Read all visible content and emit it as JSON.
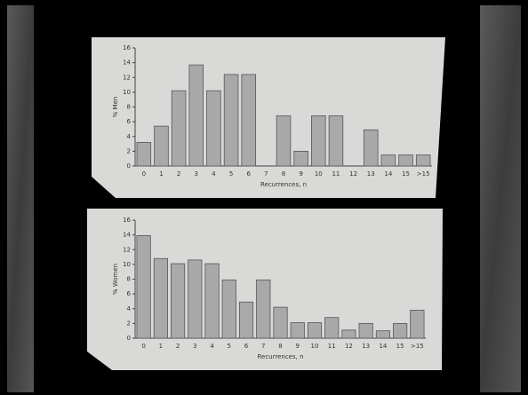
{
  "chart_data": [
    {
      "type": "bar",
      "x_label": "Recurrences, n",
      "y_label": "% Men",
      "categories": [
        "0",
        "1",
        "2",
        "3",
        "4",
        "5",
        "6",
        "7",
        "8",
        "9",
        "10",
        "11",
        "12",
        "13",
        "14",
        "15",
        ">15"
      ],
      "values": [
        3.2,
        5.4,
        10.2,
        13.7,
        10.2,
        12.4,
        12.4,
        0,
        6.8,
        2.0,
        6.8,
        6.8,
        0,
        4.9,
        1.5,
        1.5,
        1.5
      ],
      "color": "#a9a9a9",
      "ylim": [
        0,
        16
      ],
      "yticks": [
        0,
        2,
        4,
        6,
        8,
        10,
        12,
        14,
        16
      ]
    },
    {
      "type": "bar",
      "x_label": "Recurrences, n",
      "y_label": "% Women",
      "categories": [
        "0",
        "1",
        "2",
        "3",
        "4",
        "5",
        "6",
        "7",
        "8",
        "9",
        "10",
        "11",
        "12",
        "13",
        "14",
        "15",
        ">15"
      ],
      "values": [
        13.9,
        10.8,
        10.1,
        10.6,
        10.1,
        7.9,
        4.9,
        7.9,
        4.2,
        2.1,
        2.1,
        2.8,
        1.1,
        2.0,
        1.0,
        2.0,
        3.8
      ],
      "color": "#a9a9a9",
      "ylim": [
        0,
        16
      ],
      "yticks": [
        0,
        2,
        4,
        6,
        8,
        10,
        12,
        14,
        16
      ]
    }
  ]
}
